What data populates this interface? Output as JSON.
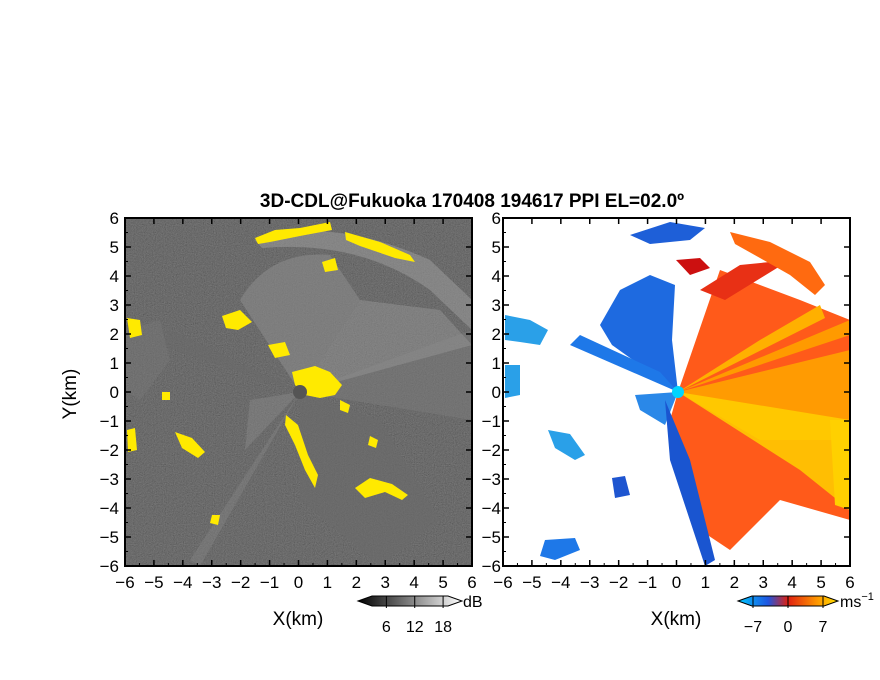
{
  "chart_data": [
    {
      "type": "heatmap",
      "title": "3D-CDL@Fukuoka 170408 194617 PPI EL=02.0º",
      "panel": "left",
      "xlabel": "X(km)",
      "ylabel": "Y(km)",
      "xlim": [
        -6,
        6
      ],
      "ylim": [
        -6,
        6
      ],
      "x_ticks": [
        -6,
        -5,
        -4,
        -3,
        -2,
        -1,
        0,
        1,
        2,
        3,
        4,
        5,
        6
      ],
      "y_ticks": [
        -6,
        -5,
        -4,
        -3,
        -2,
        -1,
        0,
        1,
        2,
        3,
        4,
        5,
        6
      ],
      "x_tick_labels": [
        "−6",
        "−5",
        "−4",
        "−3",
        "−2",
        "−1",
        "0",
        "1",
        "2",
        "3",
        "4",
        "5",
        "6"
      ],
      "y_tick_labels": [
        "−6",
        "−5",
        "−4",
        "−3",
        "−2",
        "−1",
        "0",
        "1",
        "2",
        "3",
        "4",
        "5",
        "6"
      ],
      "colormap": "grayscale with yellow highlight",
      "colors": {
        "background": "#2a2a2a",
        "highlight": "#ffea00",
        "center": "#555555"
      },
      "colorbar": {
        "unit": "dB",
        "tick_labels": [
          "6",
          "12",
          "18"
        ],
        "ticks": [
          6,
          12,
          18
        ],
        "range": [
          0,
          22
        ]
      }
    },
    {
      "type": "heatmap",
      "panel": "right",
      "xlabel": "X(km)",
      "xlim": [
        -6,
        6
      ],
      "ylim": [
        -6,
        6
      ],
      "x_ticks": [
        -6,
        -5,
        -4,
        -3,
        -2,
        -1,
        0,
        1,
        2,
        3,
        4,
        5,
        6
      ],
      "y_ticks": [
        -6,
        -5,
        -4,
        -3,
        -2,
        -1,
        0,
        1,
        2,
        3,
        4,
        5,
        6
      ],
      "x_tick_labels": [
        "−6",
        "−5",
        "−4",
        "−3",
        "−2",
        "−1",
        "0",
        "1",
        "2",
        "3",
        "4",
        "5",
        "6"
      ],
      "y_tick_labels": [
        "−6",
        "−5",
        "−4",
        "−3",
        "−2",
        "−1",
        "0",
        "1",
        "2",
        "3",
        "4",
        "5",
        "6"
      ],
      "colormap": "blue-red-yellow diverging",
      "colors": {
        "negative": "#1e6ae0",
        "light_negative": "#2aa0e8",
        "zero": "#e03010",
        "positive": "#ff7a00",
        "high": "#ffd000",
        "center": "#00d4ff"
      },
      "colorbar": {
        "unit": "ms",
        "unit_exponent": "−1",
        "tick_labels": [
          "−7",
          "0",
          "7"
        ],
        "ticks": [
          -7,
          0,
          7
        ],
        "range": [
          -10,
          10
        ]
      }
    }
  ]
}
